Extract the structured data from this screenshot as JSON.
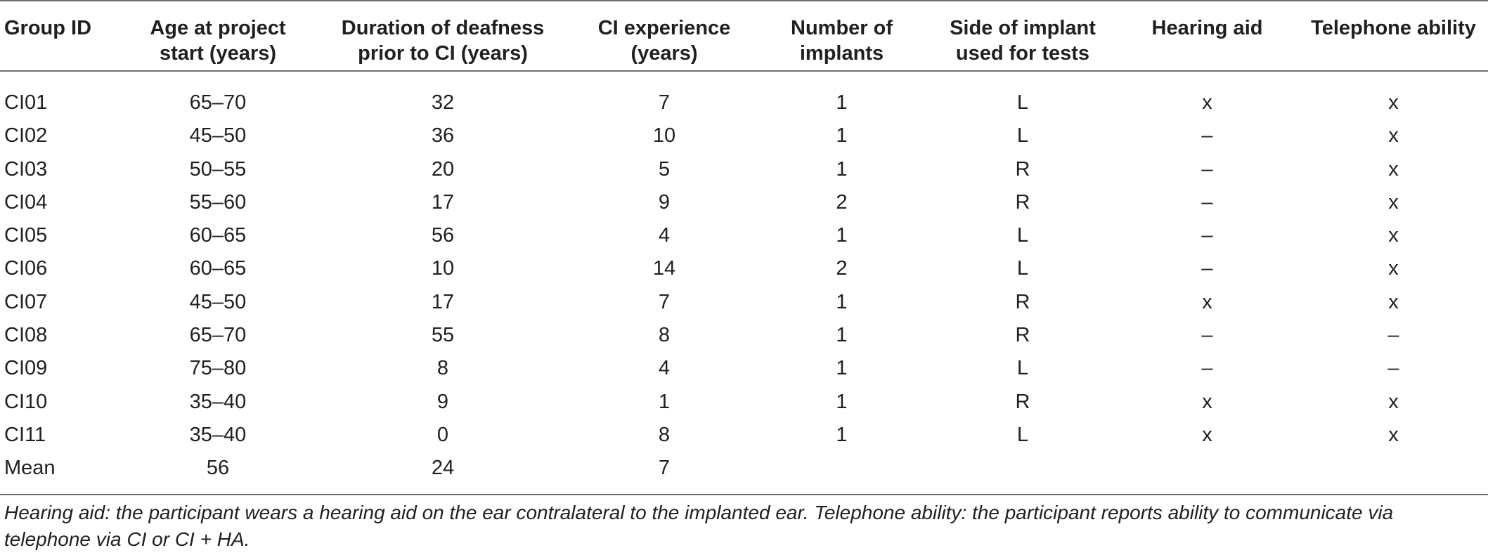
{
  "columns": [
    {
      "line1": "Group ID",
      "line2": ""
    },
    {
      "line1": "Age at project",
      "line2": "start (years)"
    },
    {
      "line1": "Duration of deafness",
      "line2": "prior to CI (years)"
    },
    {
      "line1": "CI experience",
      "line2": "(years)"
    },
    {
      "line1": "Number of",
      "line2": "implants"
    },
    {
      "line1": "Side of implant",
      "line2": "used for tests"
    },
    {
      "line1": "Hearing aid",
      "line2": ""
    },
    {
      "line1": "Telephone ability",
      "line2": ""
    }
  ],
  "rows": [
    [
      "CI01",
      "65–70",
      "32",
      "7",
      "1",
      "L",
      "x",
      "x"
    ],
    [
      "CI02",
      "45–50",
      "36",
      "10",
      "1",
      "L",
      "–",
      "x"
    ],
    [
      "CI03",
      "50–55",
      "20",
      "5",
      "1",
      "R",
      "–",
      "x"
    ],
    [
      "CI04",
      "55–60",
      "17",
      "9",
      "2",
      "R",
      "–",
      "x"
    ],
    [
      "CI05",
      "60–65",
      "56",
      "4",
      "1",
      "L",
      "–",
      "x"
    ],
    [
      "CI06",
      "60–65",
      "10",
      "14",
      "2",
      "L",
      "–",
      "x"
    ],
    [
      "CI07",
      "45–50",
      "17",
      "7",
      "1",
      "R",
      "x",
      "x"
    ],
    [
      "CI08",
      "65–70",
      "55",
      "8",
      "1",
      "R",
      "–",
      "–"
    ],
    [
      "CI09",
      "75–80",
      "8",
      "4",
      "1",
      "L",
      "–",
      "–"
    ],
    [
      "CI10",
      "35–40",
      "9",
      "1",
      "1",
      "R",
      "x",
      "x"
    ],
    [
      "CI11",
      "35–40",
      "0",
      "8",
      "1",
      "L",
      "x",
      "x"
    ],
    [
      "Mean",
      "56",
      "24",
      "7",
      "",
      "",
      "",
      ""
    ]
  ],
  "footnote": "Hearing aid: the participant wears a hearing aid on the ear contralateral to the implanted ear. Telephone ability: the participant reports ability to communicate via telephone via CI or CI + HA."
}
